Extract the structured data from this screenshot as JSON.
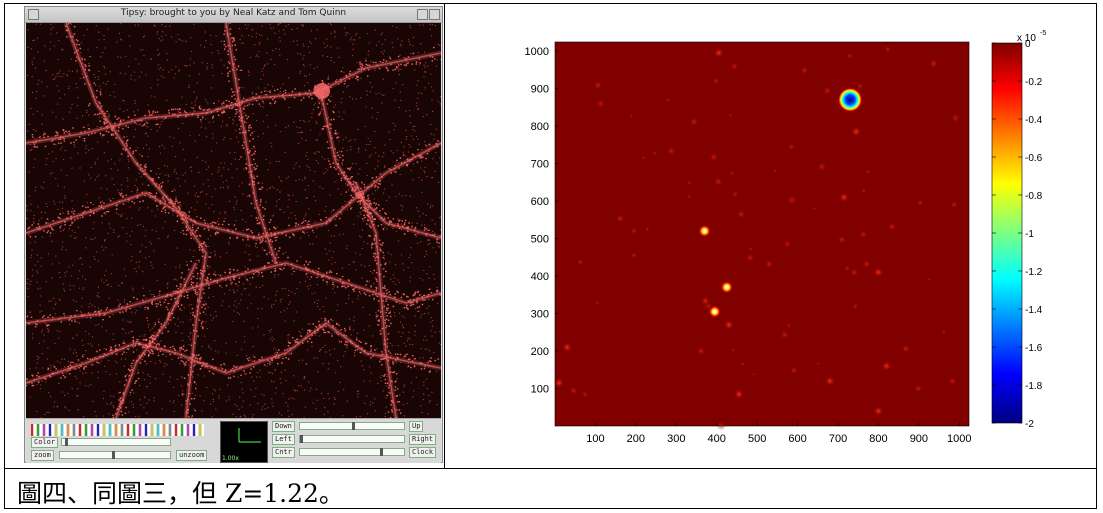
{
  "tipsy": {
    "title": "Tipsy: brought to you by Neal Katz and Tom Quinn",
    "color_label": "Color",
    "zoom_label": "zoom",
    "unzoom_label": "unzoom",
    "down_label": "Down",
    "up_label": "Up",
    "left_label": "Left",
    "right_label": "Right",
    "cntr_label": "Cntr",
    "clock_label": "Clock",
    "zoom_readout": "1.00x",
    "particle_color": "#ff6a6a",
    "background_color": "#1a0505"
  },
  "caption": "圖四、同圖三，但 Z=1.22。",
  "chart_data": {
    "type": "heatmap",
    "title": "",
    "xlabel": "",
    "ylabel": "",
    "xlim": [
      0,
      1024
    ],
    "ylim": [
      0,
      1024
    ],
    "x_ticks": [
      "100",
      "200",
      "300",
      "400",
      "500",
      "600",
      "700",
      "800",
      "900",
      "1000"
    ],
    "y_ticks": [
      "100",
      "200",
      "300",
      "400",
      "500",
      "600",
      "700",
      "800",
      "900",
      "1000"
    ],
    "colorbar": {
      "exponent_label": "x 10",
      "exponent": "-5",
      "range": [
        -2,
        0
      ],
      "ticks": [
        "0",
        "-0.2",
        "-0.4",
        "-0.6",
        "-0.8",
        "-1",
        "-1.2",
        "-1.4",
        "-1.6",
        "-1.8",
        "-2"
      ],
      "colormap": "jet"
    },
    "background_value": 0,
    "background_color": "#800000",
    "features": [
      {
        "x": 730,
        "y": 870,
        "value": -2.0
      },
      {
        "x": 370,
        "y": 520,
        "value": -0.6
      },
      {
        "x": 425,
        "y": 370,
        "value": -0.5
      },
      {
        "x": 395,
        "y": 305,
        "value": -0.5
      },
      {
        "x": 405,
        "y": 995,
        "value": -0.3
      },
      {
        "x": 715,
        "y": 610,
        "value": -0.3
      },
      {
        "x": 800,
        "y": 410,
        "value": -0.3
      },
      {
        "x": 820,
        "y": 160,
        "value": -0.35
      },
      {
        "x": 30,
        "y": 210,
        "value": -0.3
      },
      {
        "x": 10,
        "y": 115,
        "value": -0.3
      },
      {
        "x": 455,
        "y": 85,
        "value": -0.3
      },
      {
        "x": 430,
        "y": 270,
        "value": -0.25
      },
      {
        "x": 745,
        "y": 785,
        "value": -0.25
      },
      {
        "x": 800,
        "y": 40,
        "value": -0.25
      },
      {
        "x": 680,
        "y": 120,
        "value": -0.2
      }
    ]
  }
}
